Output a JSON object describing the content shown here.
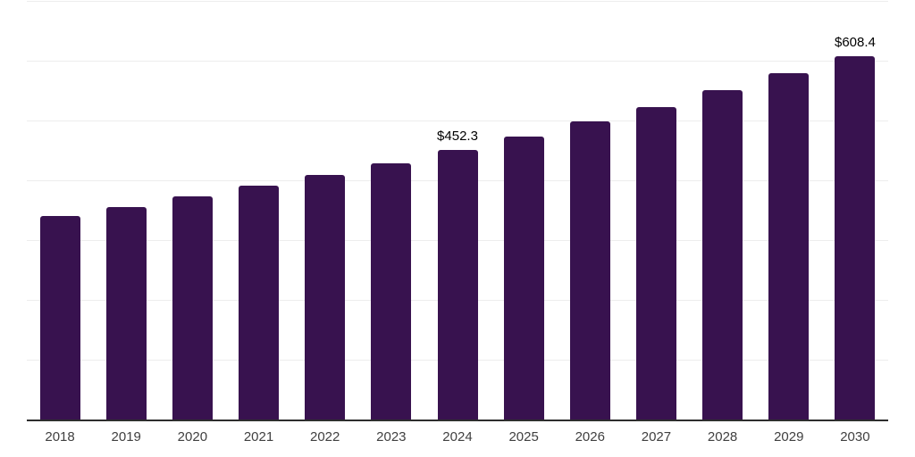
{
  "chart_data": {
    "type": "bar",
    "title": "",
    "categories": [
      "2018",
      "2019",
      "2020",
      "2021",
      "2022",
      "2023",
      "2024",
      "2025",
      "2026",
      "2027",
      "2028",
      "2029",
      "2030"
    ],
    "values": [
      342,
      356,
      374.5,
      392,
      410.5,
      430.5,
      452.3,
      475,
      500,
      524.5,
      552,
      580,
      608.4
    ],
    "value_labels": [
      "",
      "",
      "",
      "",
      "",
      "",
      "$452.3",
      "",
      "",
      "",
      "",
      "",
      "$608.4"
    ],
    "ylim": [
      0,
      700
    ],
    "gridline_step": 100,
    "grid": true,
    "legend": "none",
    "colors": {
      "bar": "#38124f",
      "axis_line": "#2e2e2e",
      "gridline": "#ededed",
      "tick_label": "#404040",
      "value_label": "#000000",
      "background": "#ffffff"
    }
  }
}
